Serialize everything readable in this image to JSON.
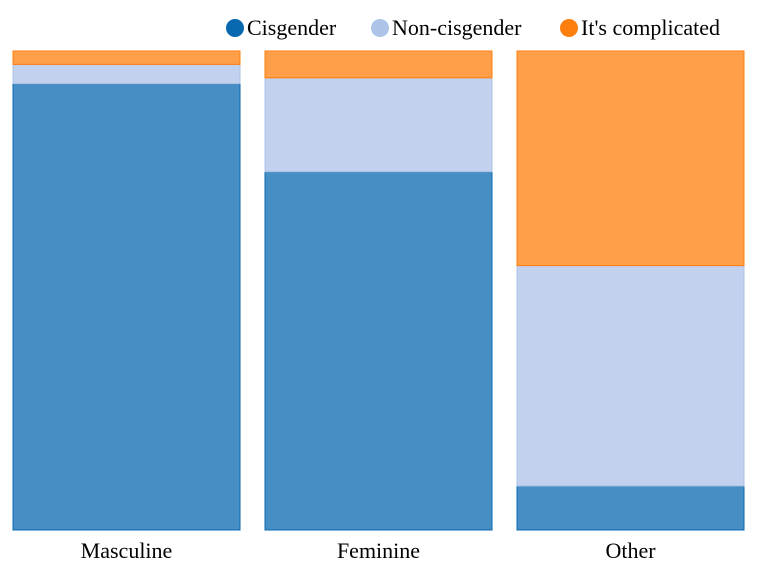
{
  "chart_data": {
    "type": "bar",
    "stacked": true,
    "normalized": true,
    "categories": [
      "Masculine",
      "Feminine",
      "Other"
    ],
    "series": [
      {
        "name": "Cisgender",
        "color": "#0868b0",
        "values": [
          0.932,
          0.748,
          0.092
        ]
      },
      {
        "name": "Non-cisgender",
        "color": "#aec3e8",
        "values": [
          0.04,
          0.196,
          0.46
        ]
      },
      {
        "name": "It's complicated",
        "color": "#ff7f0e",
        "values": [
          0.028,
          0.056,
          0.448
        ]
      }
    ],
    "ylim": [
      0,
      1
    ],
    "legend_position": "top-right",
    "grid": false
  }
}
